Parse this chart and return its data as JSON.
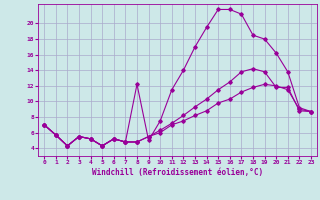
{
  "title": "",
  "xlabel": "Windchill (Refroidissement éolien,°C)",
  "ylabel": "",
  "background_color": "#cde8e8",
  "grid_color": "#aaaacc",
  "line_color": "#990099",
  "xlim": [
    -0.5,
    23.5
  ],
  "ylim": [
    3.0,
    22.5
  ],
  "xticks": [
    0,
    1,
    2,
    3,
    4,
    5,
    6,
    7,
    8,
    9,
    10,
    11,
    12,
    13,
    14,
    15,
    16,
    17,
    18,
    19,
    20,
    21,
    22,
    23
  ],
  "yticks": [
    4,
    6,
    8,
    10,
    12,
    14,
    16,
    18,
    20
  ],
  "series": [
    {
      "x": [
        0,
        1,
        2,
        3,
        4,
        5,
        6,
        7,
        8
      ],
      "y": [
        7.0,
        5.7,
        4.3,
        5.5,
        5.2,
        4.3,
        5.2,
        4.8,
        4.8
      ]
    },
    {
      "x": [
        0,
        1,
        2,
        3,
        4,
        5,
        6,
        7,
        8,
        9,
        10,
        11,
        12,
        13,
        14,
        15,
        16,
        17,
        18,
        19,
        20,
        21,
        22,
        23
      ],
      "y": [
        7.0,
        5.7,
        4.3,
        5.5,
        5.2,
        4.3,
        5.2,
        4.8,
        12.2,
        5.0,
        7.5,
        11.5,
        14.0,
        17.0,
        19.5,
        21.8,
        21.8,
        21.2,
        18.5,
        18.0,
        16.2,
        13.8,
        9.2,
        8.7
      ]
    },
    {
      "x": [
        0,
        1,
        2,
        3,
        4,
        5,
        6,
        7,
        8,
        9,
        10,
        11,
        12,
        13,
        14,
        15,
        16,
        17,
        18,
        19,
        20,
        21,
        22,
        23
      ],
      "y": [
        7.0,
        5.7,
        4.3,
        5.5,
        5.2,
        4.3,
        5.2,
        4.8,
        4.8,
        5.5,
        6.3,
        7.2,
        8.2,
        9.3,
        10.3,
        11.5,
        12.5,
        13.8,
        14.2,
        13.8,
        11.8,
        11.8,
        8.8,
        8.7
      ]
    },
    {
      "x": [
        0,
        1,
        2,
        3,
        4,
        5,
        6,
        7,
        8,
        9,
        10,
        11,
        12,
        13,
        14,
        15,
        16,
        17,
        18,
        19,
        20,
        21,
        22,
        23
      ],
      "y": [
        7.0,
        5.7,
        4.3,
        5.5,
        5.2,
        4.3,
        5.2,
        4.8,
        4.8,
        5.5,
        6.0,
        7.0,
        7.5,
        8.2,
        8.8,
        9.8,
        10.3,
        11.2,
        11.8,
        12.2,
        12.0,
        11.5,
        9.0,
        8.7
      ]
    }
  ]
}
